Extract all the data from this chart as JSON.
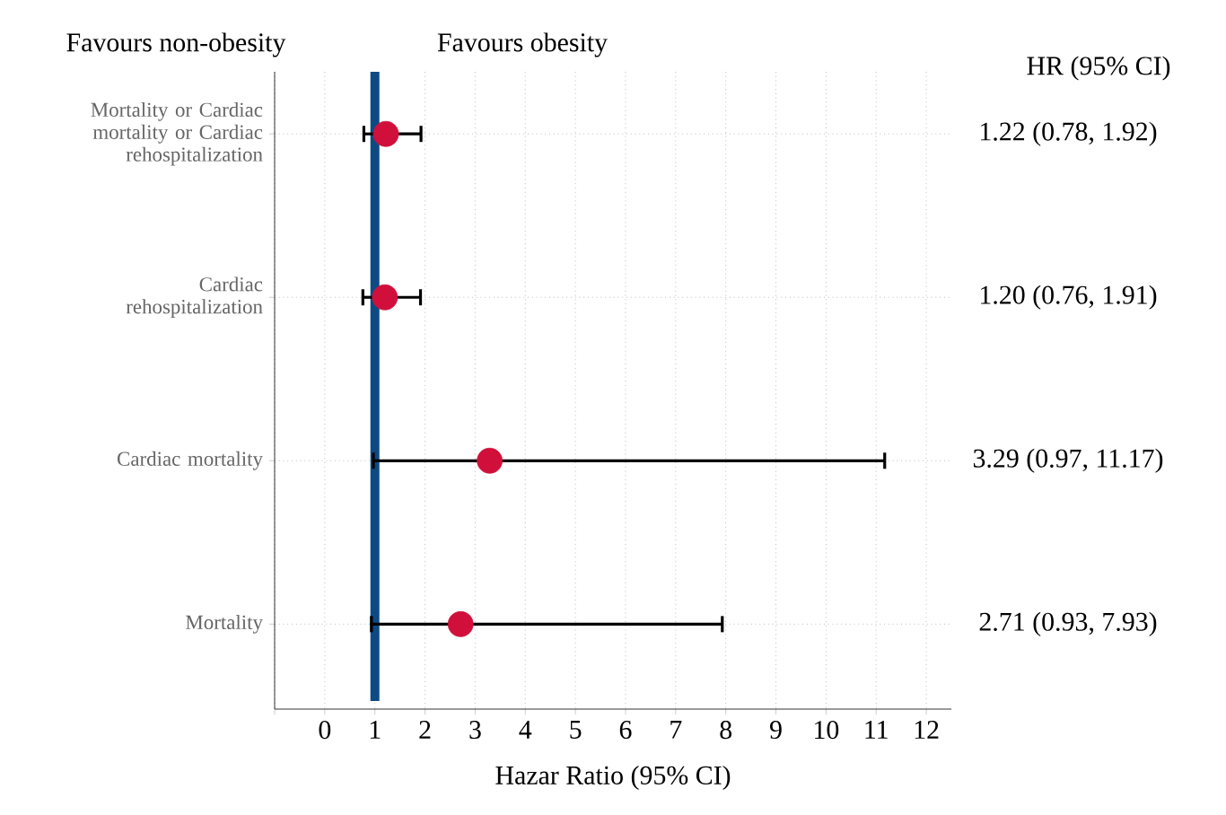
{
  "chart_data": {
    "type": "scatter",
    "orientation": "horizontal",
    "xlabel": "Hazar Ratio (95% CI)",
    "categories": [
      "Mortality or Cardiac mortality or Cardiac rehospitalization",
      "Cardiac rehospitalization",
      "Cardiac mortality",
      "Mortality"
    ],
    "series": [
      {
        "color": "#d0103a",
        "values": [
          1.22,
          1.2,
          3.29,
          2.71
        ],
        "errors": [
          [
            0.78,
            1.92
          ],
          [
            0.76,
            1.91
          ],
          [
            0.97,
            11.17
          ],
          [
            0.93,
            7.93
          ]
        ],
        "value_labels": [
          "1.22 (0.78, 1.92)",
          "1.20 (0.76, 1.91)",
          "3.29 (0.97, 11.17)",
          "2.71 (0.93, 7.93)"
        ]
      }
    ],
    "xlim": [
      -1,
      12.5
    ],
    "xticks": [
      {
        "value": -1,
        "label": null
      },
      0,
      1,
      2,
      3,
      4,
      5,
      6,
      7,
      8,
      9,
      10,
      11,
      12
    ],
    "ref_lines": [
      {
        "axis": "x",
        "value": 1,
        "color": "#0d4a84"
      }
    ],
    "annotations": [
      "Favours non-obesity",
      "Favours obesity",
      "HR (95% CI)"
    ],
    "grid": true
  }
}
